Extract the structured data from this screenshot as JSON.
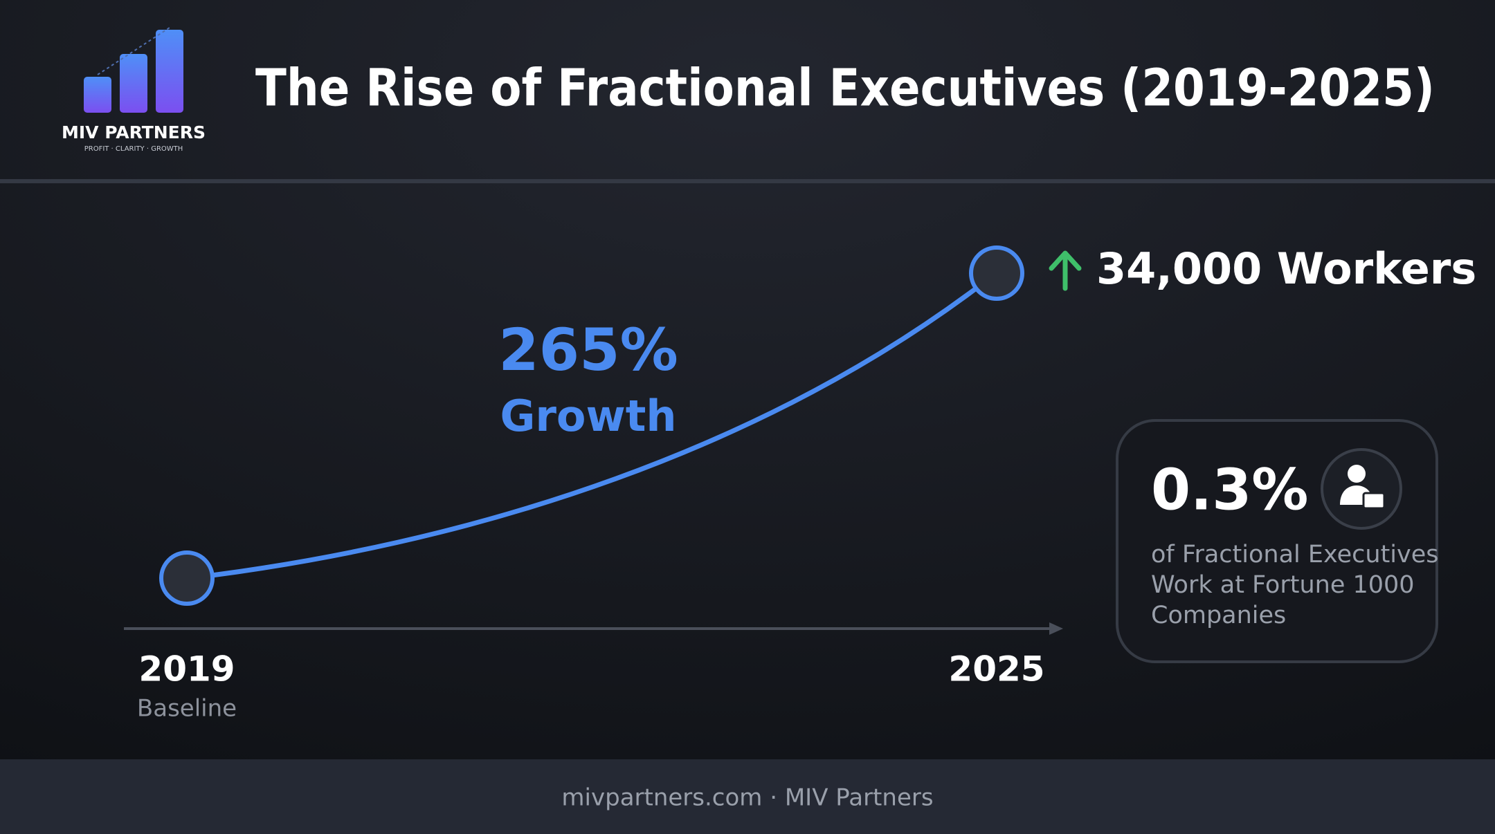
{
  "logo": {
    "name": "MIV PARTNERS",
    "tagline": "PROFIT · CLARITY · GROWTH"
  },
  "header": {
    "title": "The Rise of Fractional Executives (2019-2025)"
  },
  "growth": {
    "value": "265%",
    "label": "Growth"
  },
  "endpoint": {
    "label": "34,000 Workers"
  },
  "timeline": {
    "start": {
      "year": "2019",
      "label": "Baseline"
    },
    "end": {
      "year": "2025"
    }
  },
  "stat_card": {
    "value": "0.3%",
    "lines": [
      "of Fractional Executives",
      "Work at Fortune 1000",
      "Companies"
    ]
  },
  "footer": {
    "text": "mivpartners.com · MIV Partners"
  }
}
